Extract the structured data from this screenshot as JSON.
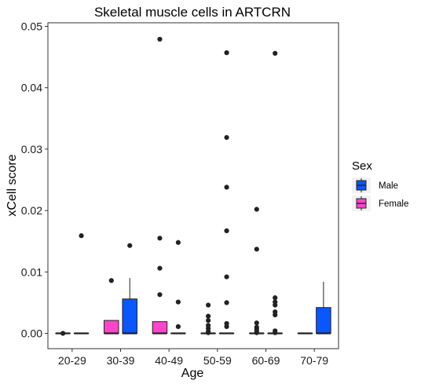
{
  "chart_data": {
    "type": "boxplot",
    "title": "Skeletal muscle cells in ARTCRN",
    "xlabel": "Age",
    "ylabel": "xCell score",
    "categories": [
      "20-29",
      "30-39",
      "40-49",
      "50-59",
      "60-69",
      "70-79"
    ],
    "yticks": [
      0.0,
      0.01,
      0.02,
      0.03,
      0.04,
      0.05
    ],
    "ytick_labels": [
      "0.00",
      "0.01",
      "0.02",
      "0.03",
      "0.04",
      "0.05"
    ],
    "ylim": [
      -0.0022,
      0.0505
    ],
    "grid": false,
    "legend": {
      "title": "Sex",
      "position": "right",
      "entries": [
        {
          "name": "Male",
          "color": "#0a56ff"
        },
        {
          "name": "Female",
          "color": "#ff44cc"
        }
      ]
    },
    "series": [
      {
        "name": "Female",
        "color": "#ff44cc",
        "boxes": [
          {
            "category": "20-29",
            "q1": 0,
            "median": 0,
            "q3": 0,
            "lower": 0,
            "upper": 0,
            "outliers": [
              0.0
            ]
          },
          {
            "category": "30-39",
            "q1": 0,
            "median": 0,
            "q3": 0.0021,
            "lower": 0,
            "upper": 0.0021,
            "outliers": [
              0.0086
            ]
          },
          {
            "category": "40-49",
            "q1": 0,
            "median": 0,
            "q3": 0.0019,
            "lower": 0,
            "upper": 0.0019,
            "outliers": [
              0.0063,
              0.0106,
              0.0155,
              0.0479
            ]
          },
          {
            "category": "50-59",
            "q1": 0,
            "median": 0,
            "q3": 0,
            "lower": 0,
            "upper": 0,
            "outliers": [
              0.0001,
              0.0003,
              0.0008,
              0.0013,
              0.0021,
              0.0028,
              0.0046
            ]
          },
          {
            "category": "60-69",
            "q1": 0,
            "median": 0,
            "q3": 0,
            "lower": 0,
            "upper": 0,
            "outliers": [
              0.0001,
              0.0004,
              0.0007,
              0.001,
              0.0017,
              0.0137,
              0.0202
            ]
          },
          {
            "category": "70-79",
            "q1": 0,
            "median": 0,
            "q3": 0,
            "lower": 0,
            "upper": 0,
            "outliers": []
          }
        ]
      },
      {
        "name": "Male",
        "color": "#0a56ff",
        "boxes": [
          {
            "category": "20-29",
            "q1": 0,
            "median": 0,
            "q3": 0,
            "lower": 0,
            "upper": 0,
            "outliers": [
              0.0159
            ]
          },
          {
            "category": "30-39",
            "q1": 0,
            "median": 0,
            "q3": 0.0056,
            "lower": 0,
            "upper": 0.009,
            "outliers": [
              0.0143
            ]
          },
          {
            "category": "40-49",
            "q1": 0,
            "median": 0,
            "q3": 0,
            "lower": 0,
            "upper": 0,
            "outliers": [
              0.0011,
              0.0051,
              0.0148
            ]
          },
          {
            "category": "50-59",
            "q1": 0,
            "median": 0,
            "q3": 0,
            "lower": 0,
            "upper": 0,
            "outliers": [
              0.0011,
              0.0016,
              0.005,
              0.0092,
              0.0167,
              0.0238,
              0.0319,
              0.0457
            ]
          },
          {
            "category": "60-69",
            "q1": 0,
            "median": 0,
            "q3": 0,
            "lower": 0,
            "upper": 0,
            "outliers": [
              0.0001,
              0.0004,
              0.003,
              0.0035,
              0.0046,
              0.0051,
              0.0058,
              0.0456
            ]
          },
          {
            "category": "70-79",
            "q1": 0,
            "median": 0,
            "q3": 0.0042,
            "lower": 0,
            "upper": 0.0084,
            "outliers": []
          }
        ]
      }
    ]
  }
}
